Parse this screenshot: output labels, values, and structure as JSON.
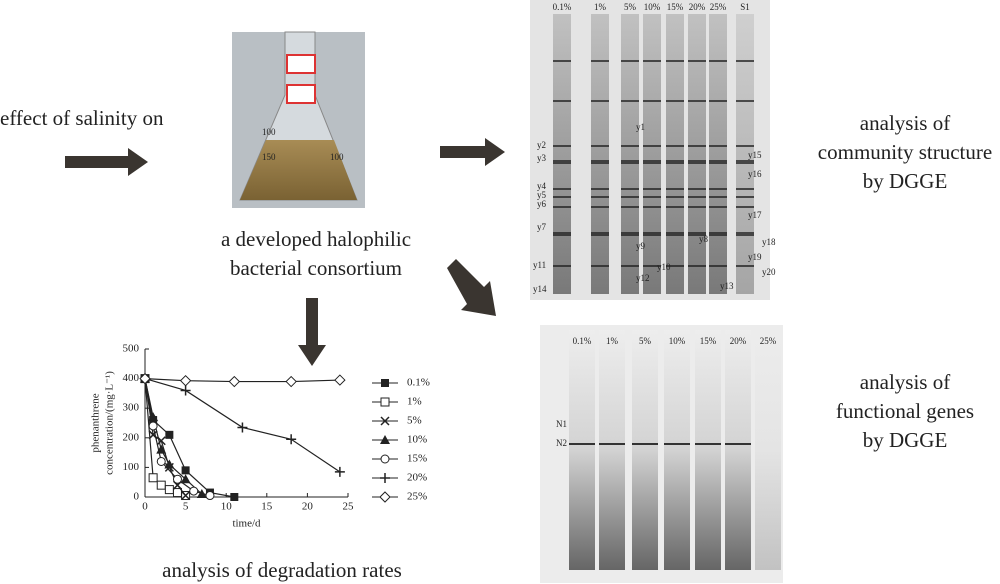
{
  "input_text": "effect of salinity on",
  "consortium_label": [
    "a developed halophilic",
    "bacterial consortium"
  ],
  "flask_marks": [
    "100",
    "150",
    "100"
  ],
  "community_gel": {
    "lanes": [
      "0.1%",
      "1%",
      "5%",
      "10%",
      "15%",
      "20%",
      "25%",
      "S1"
    ],
    "bands": [
      "y1",
      "y2",
      "y3",
      "y4",
      "y5",
      "y6",
      "y7",
      "y8",
      "y9",
      "y10",
      "y11",
      "y12",
      "y13",
      "y14",
      "y15",
      "y16",
      "y17",
      "y18",
      "y19",
      "y20"
    ]
  },
  "community_label": [
    "analysis of",
    "community structure",
    "by DGGE"
  ],
  "functional_gel": {
    "lanes": [
      "0.1%",
      "1%",
      "5%",
      "10%",
      "15%",
      "20%",
      "25%"
    ],
    "bands": [
      "N1",
      "N2"
    ]
  },
  "functional_label": [
    "analysis of",
    "functional genes",
    "by DGGE"
  ],
  "chart_caption": "analysis of degradation rates",
  "chart_data": {
    "type": "line",
    "ylabel": [
      "phenanthrene",
      "concentration/(mg·L⁻¹)"
    ],
    "xlabel": "time/d",
    "xlim": [
      0,
      25
    ],
    "xticks": [
      0,
      5,
      10,
      15,
      20,
      25
    ],
    "ylim": [
      0,
      500
    ],
    "yticks": [
      0,
      100,
      200,
      300,
      400,
      500
    ],
    "series": [
      {
        "name": "0.1%",
        "color": "#222",
        "x": [
          0,
          1,
          3,
          5,
          8,
          11
        ],
        "values": [
          400,
          260,
          210,
          90,
          15,
          0
        ]
      },
      {
        "name": "1%",
        "color": "#222",
        "x": [
          0,
          1,
          2,
          3,
          4,
          5
        ],
        "values": [
          400,
          65,
          40,
          25,
          15,
          5
        ]
      },
      {
        "name": "5%",
        "color": "#222",
        "x": [
          0,
          1,
          2,
          3,
          4,
          5
        ],
        "values": [
          400,
          210,
          190,
          100,
          40,
          5
        ]
      },
      {
        "name": "10%",
        "color": "#222",
        "x": [
          0,
          1,
          2,
          3,
          5,
          7
        ],
        "values": [
          400,
          270,
          160,
          110,
          60,
          10
        ]
      },
      {
        "name": "15%",
        "color": "#222",
        "x": [
          0,
          1,
          2,
          4,
          6,
          8
        ],
        "values": [
          400,
          240,
          120,
          60,
          20,
          5
        ]
      },
      {
        "name": "20%",
        "color": "#222",
        "x": [
          0,
          5,
          12,
          18,
          24
        ],
        "values": [
          400,
          360,
          235,
          195,
          85
        ]
      },
      {
        "name": "25%",
        "color": "#222",
        "x": [
          0,
          5,
          11,
          18,
          24
        ],
        "values": [
          400,
          393,
          390,
          390,
          395
        ]
      }
    ]
  }
}
